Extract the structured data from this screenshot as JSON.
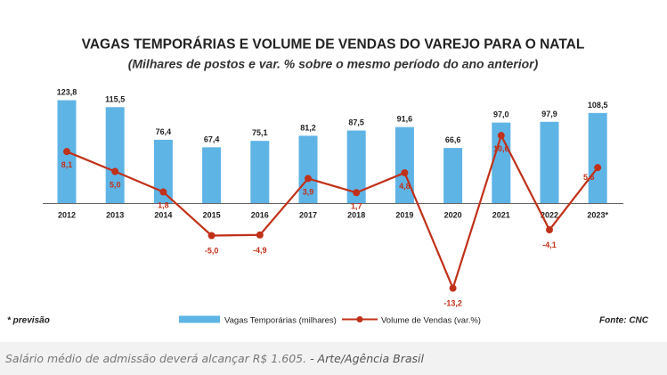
{
  "chart_data": {
    "type": "bar",
    "title": "VAGAS TEMPORÁRIAS E VOLUME DE VENDAS DO VAREJO PARA O NATAL",
    "subtitle": "(Milhares de postos e var. % sobre o mesmo período do ano anterior)",
    "categories": [
      "2012",
      "2013",
      "2014",
      "2015",
      "2016",
      "2017",
      "2018",
      "2019",
      "2020",
      "2021",
      "2022",
      "2023*"
    ],
    "series": [
      {
        "name": "Vagas Temporárias (milhares)",
        "type": "bar",
        "values": [
          123.8,
          115.5,
          76.4,
          67.4,
          75.1,
          81.2,
          87.5,
          91.6,
          66.6,
          97.0,
          97.9,
          108.5
        ],
        "labels": [
          "123,8",
          "115,5",
          "76,4",
          "67,4",
          "75,1",
          "81,2",
          "87,5",
          "91,6",
          "66,6",
          "97,0",
          "97,9",
          "108,5"
        ],
        "color": "#5fb4e6"
      },
      {
        "name": "Volume de Vendas (var.%)",
        "type": "line",
        "values": [
          8.1,
          5.0,
          1.8,
          -5.0,
          -4.9,
          3.9,
          1.7,
          4.8,
          -13.2,
          10.6,
          -4.1,
          5.6
        ],
        "labels": [
          "8,1",
          "5,0",
          "1,8",
          "-5,0",
          "-4,9",
          "3,9",
          "1,7",
          "4,8",
          "-13,2",
          "10,6",
          "-4,1",
          "5,6"
        ],
        "color": "#c0311a"
      }
    ],
    "footnote": "* previsão",
    "source": "Fonte: CNC"
  },
  "caption": {
    "text": "Salário médio de admissão deverá alcançar R$ 1.605.",
    "credit": " - Arte/Agência Brasil"
  },
  "colors": {
    "bar": "#5fb4e6",
    "line": "#c0311a",
    "label_line": "#c0311a",
    "axis": "#555555",
    "text": "#222222"
  }
}
